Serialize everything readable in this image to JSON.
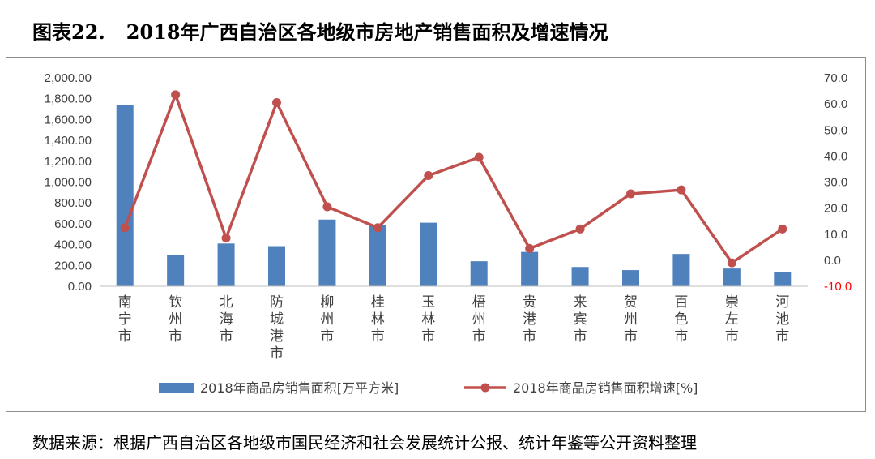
{
  "title": {
    "number": "图表22.",
    "text": "2018年广西自治区各地级市房地产销售面积及增速情况"
  },
  "source_note": "数据来源：根据广西自治区各地级市国民经济和社会发展统计公报、统计年鉴等公开资料整理",
  "colors": {
    "bar": "#4f81bd",
    "line": "#c0504d",
    "negative_tick": "#ff0000"
  },
  "chart_data": {
    "type": "bar+line",
    "categories": [
      "南宁市",
      "钦州市",
      "北海市",
      "防城港市",
      "柳州市",
      "桂林市",
      "玉林市",
      "梧州市",
      "贵港市",
      "来宾市",
      "贺州市",
      "百色市",
      "崇左市",
      "河池市"
    ],
    "series": [
      {
        "name": "2018年商品房销售面积[万平方米]",
        "type": "bar",
        "axis": "left",
        "values": [
          1740,
          300,
          410,
          385,
          640,
          590,
          610,
          240,
          330,
          185,
          155,
          310,
          170,
          140
        ]
      },
      {
        "name": "2018年商品房销售面积增速[%]",
        "type": "line",
        "axis": "right",
        "values": [
          12.5,
          63.5,
          8.5,
          60.5,
          20.5,
          12.5,
          32.5,
          39.5,
          4.5,
          12.0,
          25.5,
          27.0,
          -1.0,
          12.0
        ]
      }
    ],
    "y_left": {
      "min": 0,
      "max": 2000,
      "ticks": [
        "0.00",
        "200.00",
        "400.00",
        "600.00",
        "800.00",
        "1,000.00",
        "1,200.00",
        "1,400.00",
        "1,600.00",
        "1,800.00",
        "2,000.00"
      ]
    },
    "y_right": {
      "min": -10,
      "max": 70,
      "ticks": [
        "-10.0",
        "0.0",
        "10.0",
        "20.0",
        "30.0",
        "40.0",
        "50.0",
        "60.0",
        "70.0"
      ]
    },
    "grid": false,
    "legend_position": "bottom"
  }
}
